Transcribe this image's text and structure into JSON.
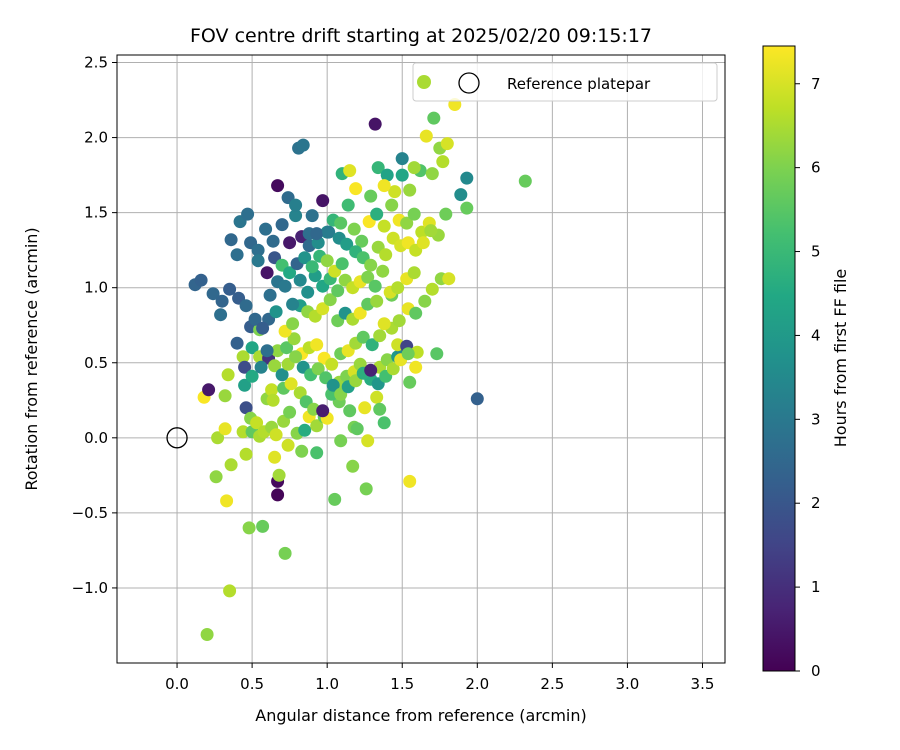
{
  "chart_data": {
    "type": "scatter",
    "title": "FOV centre drift starting at 2025/02/20 09:15:17",
    "xlabel": "Angular distance from reference (arcmin)",
    "ylabel": "Rotation from reference (arcmin)",
    "xlim": [
      -0.4,
      3.65
    ],
    "ylim": [
      -1.5,
      2.55
    ],
    "x_ticks": [
      "0.0",
      "0.5",
      "1.0",
      "1.5",
      "2.0",
      "2.5",
      "3.0",
      "3.5"
    ],
    "y_ticks": [
      "−1.0",
      "−0.5",
      "0.0",
      "0.5",
      "1.0",
      "1.5",
      "2.0",
      "2.5"
    ],
    "grid": true,
    "legend": {
      "placement": "top-right",
      "entries": [
        "",
        "Reference platepar"
      ]
    },
    "reference_point": {
      "x": 0.0,
      "y": 0.0,
      "label": "Reference platepar"
    },
    "colorbar": {
      "label": "Hours from first FF file",
      "colormap": "viridis",
      "range": [
        0,
        7.45
      ],
      "ticks": [
        "0",
        "1",
        "2",
        "3",
        "4",
        "5",
        "6",
        "7"
      ]
    },
    "points": [
      [
        0.2,
        -1.31,
        6.2
      ],
      [
        0.35,
        -1.02,
        6.6
      ],
      [
        0.48,
        -0.6,
        6.1
      ],
      [
        0.57,
        -0.59,
        5.7
      ],
      [
        0.72,
        -0.77,
        5.9
      ],
      [
        0.33,
        -0.42,
        7.3
      ],
      [
        0.26,
        -0.26,
        6.2
      ],
      [
        0.36,
        -0.18,
        6.5
      ],
      [
        0.67,
        -0.38,
        0.1
      ],
      [
        0.67,
        -0.29,
        0.2
      ],
      [
        0.68,
        -0.25,
        6.4
      ],
      [
        0.65,
        -0.13,
        7.1
      ],
      [
        0.74,
        -0.05,
        6.9
      ],
      [
        0.83,
        -0.09,
        6.0
      ],
      [
        0.93,
        -0.1,
        5.3
      ],
      [
        1.05,
        -0.41,
        5.7
      ],
      [
        1.26,
        -0.34,
        5.9
      ],
      [
        1.55,
        -0.29,
        7.3
      ],
      [
        1.17,
        -0.19,
        6.1
      ],
      [
        1.09,
        -0.02,
        5.9
      ],
      [
        1.18,
        0.07,
        5.9
      ],
      [
        1.27,
        -0.02,
        7.0
      ],
      [
        2.32,
        1.71,
        5.7
      ],
      [
        2.0,
        0.26,
        2.3
      ],
      [
        0.27,
        0.0,
        6.5
      ],
      [
        0.32,
        0.06,
        7.2
      ],
      [
        0.18,
        0.27,
        7.4
      ],
      [
        0.32,
        0.28,
        6.3
      ],
      [
        0.34,
        0.42,
        6.6
      ],
      [
        0.21,
        0.32,
        0.5
      ],
      [
        0.44,
        0.04,
        6.6
      ],
      [
        0.46,
        -0.11,
        6.6
      ],
      [
        0.46,
        0.2,
        1.8
      ],
      [
        0.49,
        0.13,
        6.1
      ],
      [
        0.5,
        0.04,
        5.6
      ],
      [
        0.53,
        0.1,
        6.8
      ],
      [
        0.55,
        0.01,
        6.5
      ],
      [
        0.58,
        0.04,
        6.6
      ],
      [
        0.63,
        0.07,
        6.3
      ],
      [
        0.66,
        0.02,
        6.9
      ],
      [
        0.71,
        0.11,
        6.3
      ],
      [
        0.75,
        0.17,
        5.9
      ],
      [
        0.8,
        0.03,
        6.1
      ],
      [
        0.85,
        0.05,
        4.6
      ],
      [
        0.88,
        0.14,
        7.3
      ],
      [
        0.93,
        0.08,
        6.4
      ],
      [
        0.98,
        0.14,
        5.6
      ],
      [
        1.0,
        0.13,
        7.3
      ],
      [
        1.08,
        0.24,
        5.8
      ],
      [
        1.15,
        0.18,
        5.6
      ],
      [
        1.2,
        0.06,
        5.6
      ],
      [
        1.25,
        0.2,
        7.2
      ],
      [
        1.33,
        0.27,
        6.9
      ],
      [
        1.35,
        0.19,
        5.6
      ],
      [
        1.38,
        0.1,
        5.3
      ],
      [
        0.45,
        0.35,
        4.2
      ],
      [
        0.6,
        0.26,
        6.2
      ],
      [
        0.63,
        0.32,
        6.8
      ],
      [
        0.64,
        0.25,
        6.6
      ],
      [
        0.71,
        0.33,
        5.6
      ],
      [
        0.76,
        0.36,
        7.1
      ],
      [
        0.82,
        0.3,
        6.5
      ],
      [
        0.86,
        0.24,
        5.4
      ],
      [
        0.91,
        0.19,
        6.1
      ],
      [
        0.97,
        0.18,
        0.6
      ],
      [
        1.03,
        0.29,
        5.3
      ],
      [
        1.08,
        0.37,
        6.3
      ],
      [
        1.13,
        0.41,
        6.0
      ],
      [
        1.18,
        0.44,
        7.0
      ],
      [
        1.22,
        0.49,
        6.3
      ],
      [
        1.29,
        0.39,
        4.6
      ],
      [
        1.35,
        0.47,
        6.5
      ],
      [
        1.4,
        0.52,
        6.1
      ],
      [
        1.47,
        0.54,
        4.0
      ],
      [
        1.5,
        0.57,
        3.5
      ],
      [
        1.55,
        0.37,
        5.7
      ],
      [
        1.59,
        0.47,
        7.3
      ],
      [
        1.73,
        0.56,
        5.5
      ],
      [
        0.44,
        0.54,
        6.5
      ],
      [
        0.5,
        0.6,
        4.4
      ],
      [
        0.55,
        0.54,
        6.5
      ],
      [
        0.61,
        0.53,
        1.1
      ],
      [
        0.67,
        0.58,
        6.2
      ],
      [
        0.73,
        0.6,
        5.5
      ],
      [
        0.78,
        0.66,
        6.3
      ],
      [
        0.83,
        0.56,
        7.4
      ],
      [
        0.88,
        0.6,
        6.7
      ],
      [
        0.93,
        0.62,
        7.3
      ],
      [
        0.98,
        0.53,
        7.4
      ],
      [
        1.03,
        0.49,
        6.8
      ],
      [
        1.09,
        0.56,
        5.8
      ],
      [
        1.14,
        0.58,
        7.2
      ],
      [
        1.19,
        0.63,
        6.4
      ],
      [
        1.24,
        0.67,
        5.6
      ],
      [
        1.3,
        0.62,
        4.8
      ],
      [
        1.35,
        0.68,
        6.4
      ],
      [
        1.43,
        0.73,
        6.5
      ],
      [
        1.47,
        0.62,
        6.9
      ],
      [
        1.53,
        0.61,
        1.5
      ],
      [
        1.6,
        0.57,
        6.7
      ],
      [
        0.49,
        0.74,
        2.2
      ],
      [
        0.55,
        0.72,
        6.0
      ],
      [
        0.61,
        0.79,
        2.5
      ],
      [
        0.66,
        0.84,
        3.8
      ],
      [
        0.72,
        0.71,
        7.3
      ],
      [
        0.77,
        0.76,
        6.1
      ],
      [
        0.82,
        0.88,
        4.1
      ],
      [
        0.87,
        0.84,
        6.2
      ],
      [
        0.92,
        0.81,
        6.6
      ],
      [
        0.97,
        0.86,
        7.0
      ],
      [
        1.02,
        0.92,
        6.1
      ],
      [
        1.07,
        0.78,
        5.8
      ],
      [
        1.12,
        0.83,
        3.8
      ],
      [
        1.17,
        0.79,
        6.5
      ],
      [
        1.22,
        0.83,
        7.3
      ],
      [
        1.27,
        0.89,
        5.6
      ],
      [
        1.33,
        0.91,
        6.3
      ],
      [
        1.38,
        0.76,
        7.1
      ],
      [
        1.43,
        0.95,
        5.8
      ],
      [
        1.48,
        0.78,
        6.4
      ],
      [
        1.54,
        0.86,
        7.2
      ],
      [
        1.59,
        0.83,
        5.6
      ],
      [
        1.65,
        0.91,
        6.1
      ],
      [
        1.7,
        0.99,
        6.6
      ],
      [
        1.76,
        1.06,
        6.2
      ],
      [
        1.81,
        1.06,
        7.0
      ],
      [
        0.12,
        1.02,
        2.4
      ],
      [
        0.16,
        1.05,
        2.3
      ],
      [
        0.24,
        0.96,
        2.5
      ],
      [
        0.29,
        0.82,
        2.7
      ],
      [
        0.3,
        0.91,
        2.4
      ],
      [
        0.35,
        0.99,
        2.2
      ],
      [
        0.41,
        0.93,
        2.2
      ],
      [
        0.46,
        0.88,
        2.6
      ],
      [
        0.52,
        0.79,
        2.5
      ],
      [
        0.57,
        0.73,
        2.2
      ],
      [
        0.62,
        0.95,
        2.7
      ],
      [
        0.67,
        1.04,
        2.9
      ],
      [
        0.72,
        1.01,
        3.0
      ],
      [
        0.77,
        0.89,
        3.3
      ],
      [
        0.82,
        1.05,
        3.5
      ],
      [
        0.87,
        0.97,
        3.7
      ],
      [
        0.92,
        1.08,
        4.1
      ],
      [
        0.97,
        1.01,
        4.4
      ],
      [
        1.02,
        1.06,
        5.0
      ],
      [
        1.07,
        0.98,
        5.6
      ],
      [
        1.12,
        1.05,
        6.2
      ],
      [
        1.17,
        1.0,
        6.8
      ],
      [
        1.22,
        1.04,
        7.2
      ],
      [
        1.27,
        1.07,
        6.0
      ],
      [
        1.32,
        1.01,
        5.5
      ],
      [
        1.37,
        1.11,
        6.2
      ],
      [
        1.42,
        0.97,
        7.0
      ],
      [
        1.47,
        1.0,
        6.6
      ],
      [
        1.53,
        1.06,
        7.2
      ],
      [
        1.58,
        1.1,
        6.5
      ],
      [
        0.36,
        1.32,
        2.5
      ],
      [
        0.4,
        1.22,
        2.7
      ],
      [
        0.42,
        1.44,
        2.9
      ],
      [
        0.47,
        1.49,
        2.7
      ],
      [
        0.49,
        1.3,
        2.5
      ],
      [
        0.54,
        1.25,
        2.7
      ],
      [
        0.59,
        1.39,
        2.7
      ],
      [
        0.64,
        1.31,
        2.6
      ],
      [
        0.67,
        1.68,
        0.2
      ],
      [
        0.7,
        1.42,
        2.5
      ],
      [
        0.75,
        1.3,
        0.5
      ],
      [
        0.79,
        1.48,
        3.3
      ],
      [
        0.83,
        1.34,
        0.7
      ],
      [
        0.88,
        1.28,
        2.6
      ],
      [
        0.9,
        1.48,
        2.8
      ],
      [
        0.94,
        1.3,
        3.6
      ],
      [
        0.97,
        1.58,
        0.4
      ],
      [
        1.0,
        1.37,
        3.6
      ],
      [
        1.04,
        1.45,
        4.9
      ],
      [
        1.09,
        1.43,
        5.5
      ],
      [
        1.14,
        1.55,
        5.1
      ],
      [
        1.18,
        1.39,
        6.0
      ],
      [
        1.23,
        1.31,
        5.7
      ],
      [
        1.28,
        1.44,
        7.4
      ],
      [
        1.33,
        1.49,
        4.7
      ],
      [
        1.38,
        1.41,
        6.8
      ],
      [
        1.43,
        1.55,
        6.1
      ],
      [
        1.48,
        1.45,
        7.3
      ],
      [
        1.53,
        1.43,
        6.2
      ],
      [
        1.58,
        1.49,
        5.9
      ],
      [
        1.63,
        1.37,
        6.7
      ],
      [
        1.68,
        1.43,
        7.1
      ],
      [
        1.74,
        1.35,
        6.3
      ],
      [
        1.79,
        1.49,
        5.8
      ],
      [
        1.93,
        1.53,
        5.7
      ],
      [
        0.81,
        1.93,
        2.8
      ],
      [
        0.84,
        1.95,
        2.9
      ],
      [
        1.32,
        2.09,
        0.4
      ],
      [
        1.34,
        1.8,
        4.9
      ],
      [
        1.4,
        1.75,
        4.3
      ],
      [
        1.5,
        1.86,
        3.3
      ],
      [
        1.45,
        1.64,
        6.9
      ],
      [
        1.55,
        1.65,
        6.3
      ],
      [
        1.62,
        1.78,
        5.4
      ],
      [
        1.7,
        1.76,
        6.2
      ],
      [
        1.75,
        1.93,
        6.2
      ],
      [
        1.77,
        1.84,
        6.6
      ],
      [
        1.8,
        1.96,
        7.0
      ],
      [
        1.71,
        2.13,
        5.6
      ],
      [
        1.85,
        2.22,
        7.3
      ],
      [
        1.89,
        1.62,
        3.6
      ],
      [
        1.93,
        1.73,
        3.5
      ],
      [
        1.1,
        1.76,
        4.8
      ],
      [
        1.15,
        1.78,
        7.1
      ],
      [
        1.19,
        1.66,
        7.4
      ],
      [
        1.29,
        1.61,
        5.7
      ],
      [
        1.38,
        1.68,
        7.3
      ],
      [
        1.5,
        1.75,
        4.4
      ],
      [
        1.58,
        1.8,
        6.4
      ],
      [
        1.66,
        2.01,
        7.2
      ],
      [
        0.74,
        1.6,
        2.6
      ],
      [
        0.79,
        1.55,
        3.2
      ],
      [
        0.88,
        1.36,
        2.7
      ],
      [
        0.93,
        1.36,
        2.5
      ],
      [
        1.01,
        1.37,
        3.1
      ],
      [
        1.08,
        1.33,
        3.6
      ],
      [
        1.13,
        1.29,
        4.1
      ],
      [
        1.19,
        1.24,
        4.8
      ],
      [
        1.24,
        1.2,
        5.3
      ],
      [
        1.29,
        1.15,
        6.1
      ],
      [
        1.34,
        1.27,
        6.3
      ],
      [
        1.39,
        1.22,
        6.6
      ],
      [
        1.44,
        1.33,
        6.9
      ],
      [
        1.49,
        1.28,
        7.0
      ],
      [
        1.54,
        1.3,
        7.3
      ],
      [
        1.59,
        1.25,
        6.8
      ],
      [
        1.64,
        1.3,
        7.1
      ],
      [
        1.69,
        1.38,
        6.4
      ],
      [
        0.54,
        1.18,
        3.0
      ],
      [
        0.6,
        1.1,
        0.4
      ],
      [
        0.65,
        1.2,
        2.0
      ],
      [
        0.7,
        1.15,
        5.2
      ],
      [
        0.75,
        1.1,
        4.5
      ],
      [
        0.8,
        1.16,
        2.4
      ],
      [
        0.85,
        1.2,
        3.8
      ],
      [
        0.9,
        1.14,
        5.0
      ],
      [
        0.95,
        1.21,
        4.9
      ],
      [
        1.0,
        1.18,
        6.2
      ],
      [
        1.05,
        1.11,
        6.9
      ],
      [
        1.1,
        1.16,
        5.3
      ],
      [
        0.4,
        0.63,
        2.3
      ],
      [
        0.45,
        0.47,
        1.7
      ],
      [
        0.5,
        0.41,
        4.5
      ],
      [
        0.56,
        0.47,
        3.3
      ],
      [
        0.6,
        0.58,
        2.7
      ],
      [
        0.65,
        0.48,
        6.3
      ],
      [
        0.7,
        0.42,
        3.7
      ],
      [
        0.74,
        0.49,
        6.4
      ],
      [
        0.79,
        0.54,
        6.1
      ],
      [
        0.84,
        0.47,
        3.8
      ],
      [
        0.89,
        0.42,
        5.2
      ],
      [
        0.94,
        0.46,
        6.0
      ],
      [
        0.99,
        0.4,
        5.4
      ],
      [
        1.04,
        0.35,
        3.8
      ],
      [
        1.09,
        0.29,
        6.1
      ],
      [
        1.14,
        0.34,
        4.2
      ],
      [
        1.19,
        0.38,
        6.3
      ],
      [
        1.24,
        0.43,
        4.7
      ],
      [
        1.29,
        0.45,
        0.7
      ],
      [
        1.34,
        0.36,
        3.9
      ],
      [
        1.39,
        0.41,
        5.2
      ],
      [
        1.44,
        0.46,
        6.5
      ],
      [
        1.49,
        0.52,
        7.2
      ],
      [
        1.54,
        0.56,
        5.8
      ]
    ]
  }
}
